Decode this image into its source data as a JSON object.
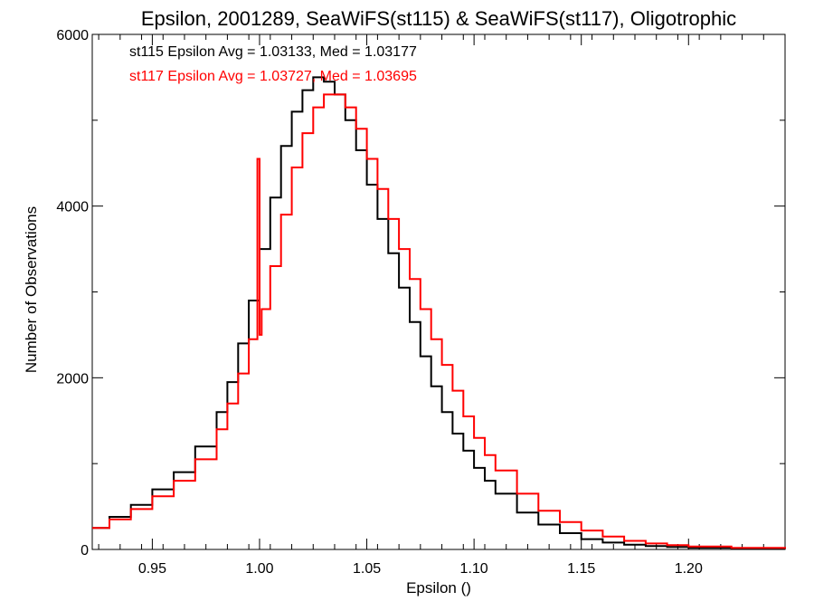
{
  "chart_data": {
    "type": "line",
    "title": "Epsilon, 2001289, SeaWiFS(st115) & SeaWiFS(st117), Oligotrophic",
    "xlabel": "Epsilon ()",
    "ylabel": "Number of Observations",
    "xlim": [
      0.922,
      1.245
    ],
    "ylim": [
      0,
      6000
    ],
    "x_ticks": [
      0.95,
      1.0,
      1.05,
      1.1,
      1.15,
      1.2
    ],
    "x_tick_labels": [
      "0.95",
      "1.00",
      "1.05",
      "1.10",
      "1.15",
      "1.20"
    ],
    "y_ticks": [
      0,
      2000,
      4000,
      6000
    ],
    "y_tick_labels": [
      "0",
      "2000",
      "4000",
      "6000"
    ],
    "grid": false,
    "legend_position": "top-left",
    "series": [
      {
        "name": "st115 Epsilon Avg = 1.03133, Med = 1.03177",
        "color": "#000000",
        "style": "step",
        "x": [
          0.922,
          0.93,
          0.94,
          0.95,
          0.96,
          0.97,
          0.98,
          0.985,
          0.99,
          0.995,
          1.0,
          1.005,
          1.01,
          1.015,
          1.02,
          1.025,
          1.028,
          1.03,
          1.035,
          1.04,
          1.045,
          1.05,
          1.055,
          1.06,
          1.065,
          1.07,
          1.075,
          1.08,
          1.085,
          1.09,
          1.095,
          1.1,
          1.105,
          1.11,
          1.12,
          1.13,
          1.14,
          1.15,
          1.16,
          1.17,
          1.18,
          1.19,
          1.2,
          1.22,
          1.245
        ],
        "y": [
          250,
          380,
          520,
          700,
          900,
          1200,
          1600,
          1950,
          2400,
          2900,
          3500,
          4100,
          4700,
          5100,
          5350,
          5500,
          5500,
          5450,
          5300,
          5000,
          4650,
          4250,
          3850,
          3450,
          3050,
          2650,
          2250,
          1900,
          1600,
          1350,
          1150,
          950,
          800,
          650,
          430,
          290,
          190,
          120,
          80,
          55,
          40,
          30,
          20,
          12,
          5
        ]
      },
      {
        "name": "st117 Epsilon Avg = 1.03727, Med = 1.03695",
        "color": "#ff0000",
        "style": "step",
        "x": [
          0.922,
          0.93,
          0.94,
          0.95,
          0.96,
          0.97,
          0.98,
          0.985,
          0.99,
          0.995,
          0.999,
          1.0,
          1.001,
          1.005,
          1.01,
          1.015,
          1.02,
          1.025,
          1.03,
          1.035,
          1.04,
          1.045,
          1.05,
          1.055,
          1.06,
          1.065,
          1.07,
          1.075,
          1.08,
          1.085,
          1.09,
          1.095,
          1.1,
          1.105,
          1.11,
          1.12,
          1.13,
          1.14,
          1.15,
          1.16,
          1.17,
          1.18,
          1.19,
          1.2,
          1.22,
          1.245
        ],
        "y": [
          250,
          350,
          470,
          620,
          800,
          1050,
          1400,
          1700,
          2050,
          2450,
          4550,
          2500,
          2800,
          3300,
          3900,
          4450,
          4850,
          5150,
          5300,
          5300,
          5150,
          4900,
          4550,
          4200,
          3850,
          3500,
          3150,
          2800,
          2450,
          2150,
          1850,
          1550,
          1300,
          1100,
          920,
          650,
          450,
          320,
          220,
          150,
          100,
          70,
          50,
          35,
          18,
          8
        ]
      }
    ]
  }
}
